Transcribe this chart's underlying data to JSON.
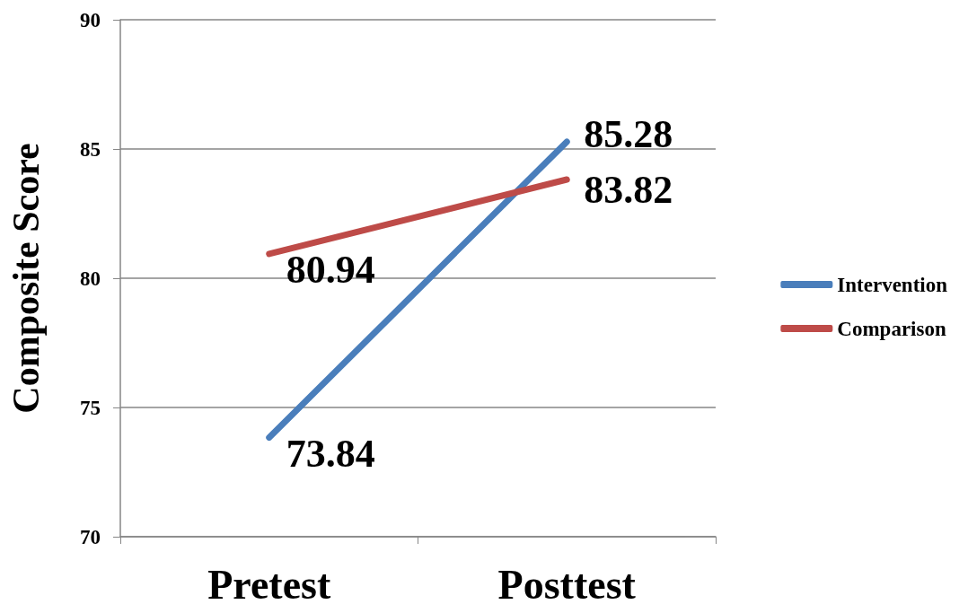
{
  "chart_data": {
    "type": "line",
    "ylabel": "Composite Score",
    "categories": [
      "Pretest",
      "Posttest"
    ],
    "series": [
      {
        "name": "Intervention",
        "color": "#4a7ebb",
        "values": [
          73.84,
          85.28
        ]
      },
      {
        "name": "Comparison",
        "color": "#be4b48",
        "values": [
          80.94,
          83.82
        ]
      }
    ],
    "ylim": [
      70,
      90
    ],
    "yticks": [
      70,
      75,
      80,
      85,
      90
    ],
    "grid": "y",
    "legend": "right",
    "marker": "none",
    "line_style": "solid",
    "data_labels": true
  }
}
